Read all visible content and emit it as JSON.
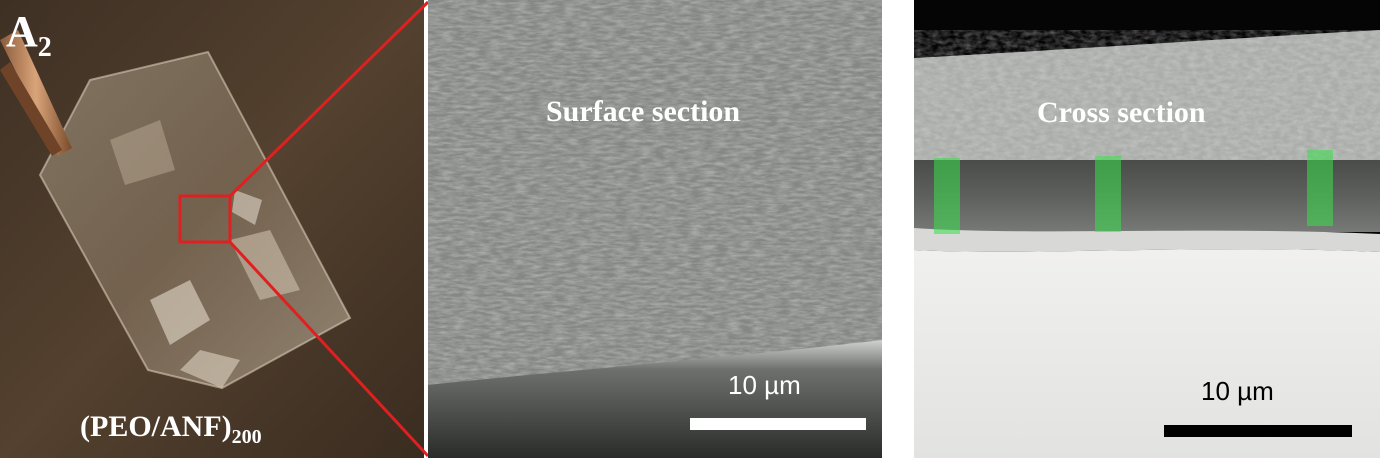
{
  "figure": {
    "panel_a": {
      "label_main": "A",
      "label_sub": "2",
      "sample_main": "(PEO/ANF)",
      "sample_sub": "200",
      "background_color": "#4a3a2b",
      "callout_color": "#e02020"
    },
    "panel_b": {
      "title": "Surface section",
      "scale_label": "10 µm",
      "scale_color": "#ffffff"
    },
    "panel_c": {
      "title": "Cross section",
      "scale_label": "10 µm",
      "scale_color": "#000000",
      "marker_color": "#38e04a"
    }
  }
}
